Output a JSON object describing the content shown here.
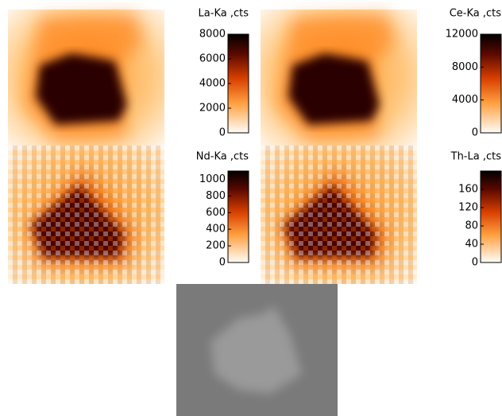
{
  "panels": [
    {
      "label": "La-Ka ,cts",
      "clim": [
        0,
        8000
      ],
      "ticks": [
        0,
        2000,
        4000,
        6000,
        8000
      ]
    },
    {
      "label": "Ce-Ka ,cts",
      "clim": [
        0,
        12000
      ],
      "ticks": [
        0,
        4000,
        8000,
        12000
      ]
    },
    {
      "label": "Nd-Ka ,cts",
      "clim": [
        0,
        1100
      ],
      "ticks": [
        0,
        200,
        400,
        600,
        800,
        1000
      ]
    },
    {
      "label": "Th-La ,cts",
      "clim": [
        0,
        200
      ],
      "ticks": [
        0,
        40,
        80,
        120,
        160
      ]
    }
  ]
}
